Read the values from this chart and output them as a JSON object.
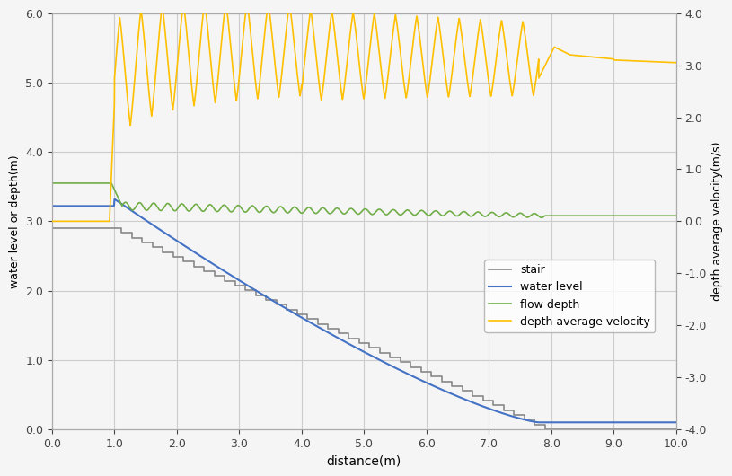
{
  "title": "",
  "xlabel": "distance(m)",
  "ylabel_left": "water level or depth(m)",
  "ylabel_right": "depth average velocity(m/s)",
  "xlim": [
    0.0,
    10.0
  ],
  "ylim_left": [
    0.0,
    6.0
  ],
  "ylim_right": [
    -4.0,
    4.0
  ],
  "xticks": [
    0.0,
    1.0,
    2.0,
    3.0,
    4.0,
    5.0,
    6.0,
    7.0,
    8.0,
    9.0,
    10.0
  ],
  "yticks_left": [
    0.0,
    1.0,
    2.0,
    3.0,
    4.0,
    5.0,
    6.0
  ],
  "yticks_right": [
    -4.0,
    -3.0,
    -2.0,
    -1.0,
    0.0,
    1.0,
    2.0,
    3.0,
    4.0
  ],
  "stair_color": "#888888",
  "water_level_color": "#4472C4",
  "flow_depth_color": "#70AD47",
  "velocity_color": "#FFC000",
  "background_color": "#f5f5f5",
  "grid_color": "#cccccc",
  "stair_n_steps": 42,
  "stair_x_start": 0.95,
  "stair_x_end": 7.9,
  "stair_y_start": 2.9,
  "stair_y_end": 0.0
}
